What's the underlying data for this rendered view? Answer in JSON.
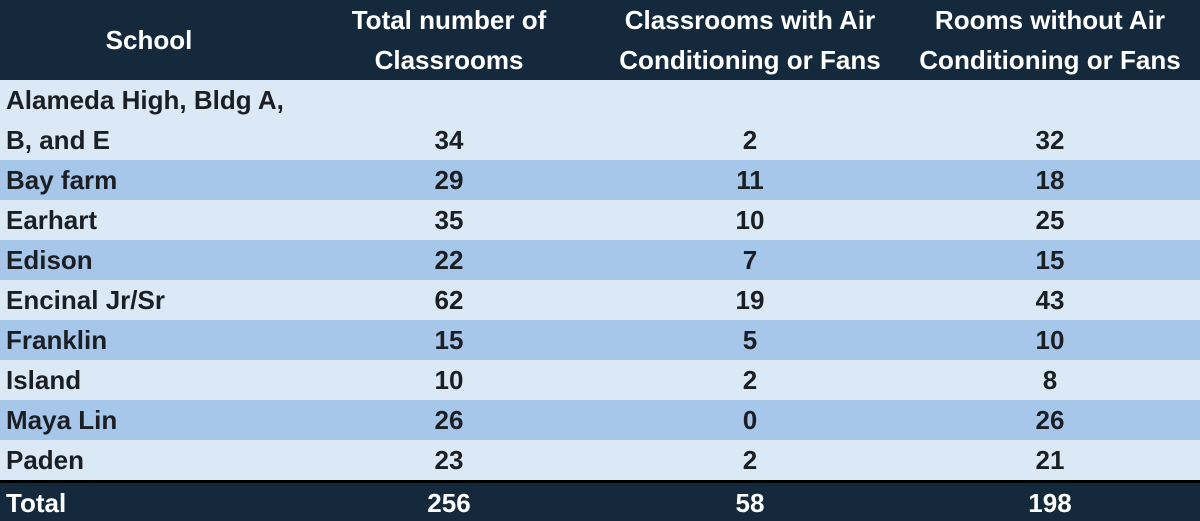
{
  "header": {
    "school": [
      "School"
    ],
    "total_classrooms": [
      "Total number of",
      "Classrooms"
    ],
    "with_ac": [
      "Classrooms with Air",
      "Conditioning or Fans"
    ],
    "without_ac": [
      "Rooms without Air",
      "Conditioning or Fans"
    ]
  },
  "rows": [
    {
      "school": [
        "Alameda High, Bldg A,",
        "B, and E"
      ],
      "total": "34",
      "with_ac": "2",
      "without_ac": "32"
    },
    {
      "school": [
        "Bay farm"
      ],
      "total": "29",
      "with_ac": "11",
      "without_ac": "18"
    },
    {
      "school": [
        "Earhart"
      ],
      "total": "35",
      "with_ac": "10",
      "without_ac": "25"
    },
    {
      "school": [
        "Edison"
      ],
      "total": "22",
      "with_ac": "7",
      "without_ac": "15"
    },
    {
      "school": [
        "Encinal Jr/Sr"
      ],
      "total": "62",
      "with_ac": "19",
      "without_ac": "43"
    },
    {
      "school": [
        "Franklin"
      ],
      "total": "15",
      "with_ac": "5",
      "without_ac": "10"
    },
    {
      "school": [
        "Island"
      ],
      "total": "10",
      "with_ac": "2",
      "without_ac": "8"
    },
    {
      "school": [
        "Maya Lin"
      ],
      "total": "26",
      "with_ac": "0",
      "without_ac": "26"
    },
    {
      "school": [
        "Paden"
      ],
      "total": "23",
      "with_ac": "2",
      "without_ac": "21"
    }
  ],
  "total": {
    "label": "Total",
    "total": "256",
    "with_ac": "58",
    "without_ac": "198"
  },
  "colors": {
    "header_bg": "#14293b",
    "row_light": "#dbe8f6",
    "row_dark": "#a6c6ea"
  }
}
